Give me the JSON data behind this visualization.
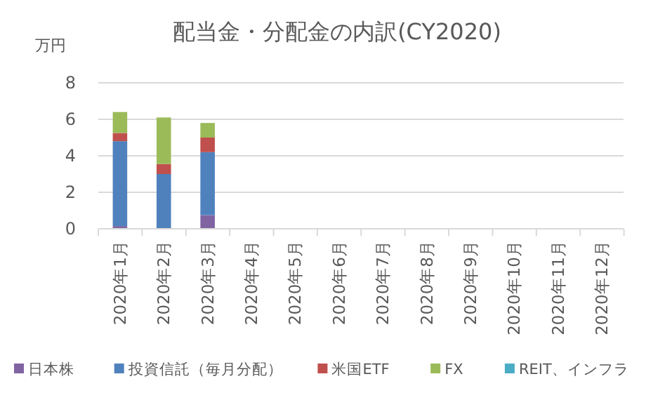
{
  "chart_data": {
    "type": "bar",
    "title": "配当金・分配金の内訳(CY2020)",
    "ylabel": "万円",
    "stacked": true,
    "categories": [
      "2020年1月",
      "2020年2月",
      "2020年3月",
      "2020年4月",
      "2020年5月",
      "2020年6月",
      "2020年7月",
      "2020年8月",
      "2020年9月",
      "2020年10月",
      "2020年11月",
      "2020年12月"
    ],
    "series": [
      {
        "name": "日本株",
        "color": "#8064a2",
        "values": [
          0.15,
          0,
          0.75,
          null,
          null,
          null,
          null,
          null,
          null,
          null,
          null,
          null
        ]
      },
      {
        "name": "投資信託（毎月分配）",
        "color": "#4f81bd",
        "values": [
          4.65,
          3.0,
          3.45,
          null,
          null,
          null,
          null,
          null,
          null,
          null,
          null,
          null
        ]
      },
      {
        "name": "米国ETF",
        "color": "#c0504d",
        "values": [
          0.45,
          0.55,
          0.8,
          null,
          null,
          null,
          null,
          null,
          null,
          null,
          null,
          null
        ]
      },
      {
        "name": "FX",
        "color": "#9bbb59",
        "values": [
          1.15,
          2.55,
          0.8,
          null,
          null,
          null,
          null,
          null,
          null,
          null,
          null,
          null
        ]
      },
      {
        "name": "REIT、インフラ",
        "color": "#4bacc6",
        "values": [
          null,
          null,
          null,
          null,
          null,
          null,
          null,
          null,
          null,
          null,
          null,
          null
        ]
      }
    ],
    "ylim": [
      0,
      8
    ],
    "yticks": [
      0,
      2,
      4,
      6,
      8
    ],
    "grid": "y",
    "legend": "bottom"
  }
}
